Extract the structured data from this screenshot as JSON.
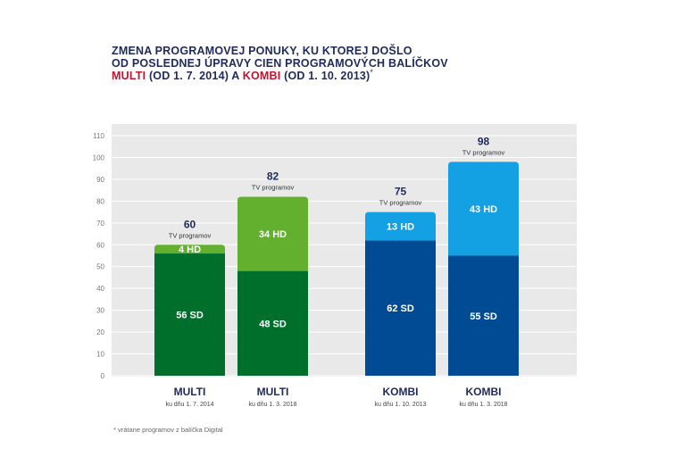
{
  "title": {
    "line1": "ZMENA PROGRAMOVEJ PONUKY, KU KTOREJ DOŠLO",
    "line2": "OD POSLEDNEJ ÚPRAVY CIEN PROGRAMOVÝCH BALÍČKOV",
    "line3_multi": "MULTI",
    "line3_middle": " (OD 1. 7. 2014) A ",
    "line3_kombi": "KOMBI",
    "line3_end": " (OD 1. 10. 2013)",
    "asterisk": "*"
  },
  "footnote": "* vrátane programov z balíčka Digital",
  "colors": {
    "title": "#1f2a5a",
    "accent": "#c4122f",
    "multi_sd": "#006f2c",
    "multi_hd": "#62b02e",
    "kombi_sd": "#004b93",
    "kombi_hd": "#14a1e4",
    "panel": "#e9e9e9",
    "grid": "#ffffff",
    "tick": "#777777",
    "total": "#1f2a5a"
  },
  "chart_data": {
    "type": "bar",
    "stacked": true,
    "ylim": [
      0,
      110
    ],
    "yticks": [
      0,
      10,
      20,
      30,
      40,
      50,
      60,
      70,
      80,
      90,
      100,
      110
    ],
    "grid": true,
    "total_unit": "TV programov",
    "categories": [
      {
        "name": "MULTI",
        "date": "ku dňu 1. 7. 2014"
      },
      {
        "name": "MULTI",
        "date": "ku dňu 1. 3. 2018"
      },
      {
        "name": "KOMBI",
        "date": "ku dňu 1. 10. 2013"
      },
      {
        "name": "KOMBI",
        "date": "ku dňu 1. 3. 2018"
      }
    ],
    "series": [
      {
        "values": [
          56,
          48,
          62,
          55
        ],
        "labels": [
          "56 SD",
          "48 SD",
          "62 SD",
          "55 SD"
        ]
      },
      {
        "values": [
          4,
          34,
          13,
          43
        ],
        "labels": [
          "4 HD",
          "34 HD",
          "13 HD",
          "43 HD"
        ]
      }
    ],
    "totals": [
      60,
      82,
      75,
      98
    ]
  }
}
